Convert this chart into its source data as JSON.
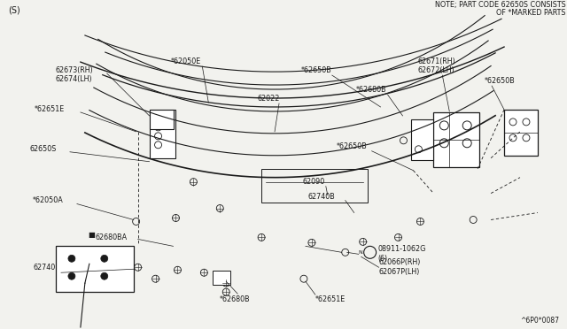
{
  "bg_color": "#f2f2ee",
  "line_color": "#1a1a1a",
  "text_color": "#1a1a1a",
  "title_note1": "NOTE; PART CODE 62650S CONSISTS",
  "title_note2": "OF *MARKED PARTS",
  "corner_label": "(S)",
  "diagram_code": "^6P0*0087",
  "font_size": 5.8
}
